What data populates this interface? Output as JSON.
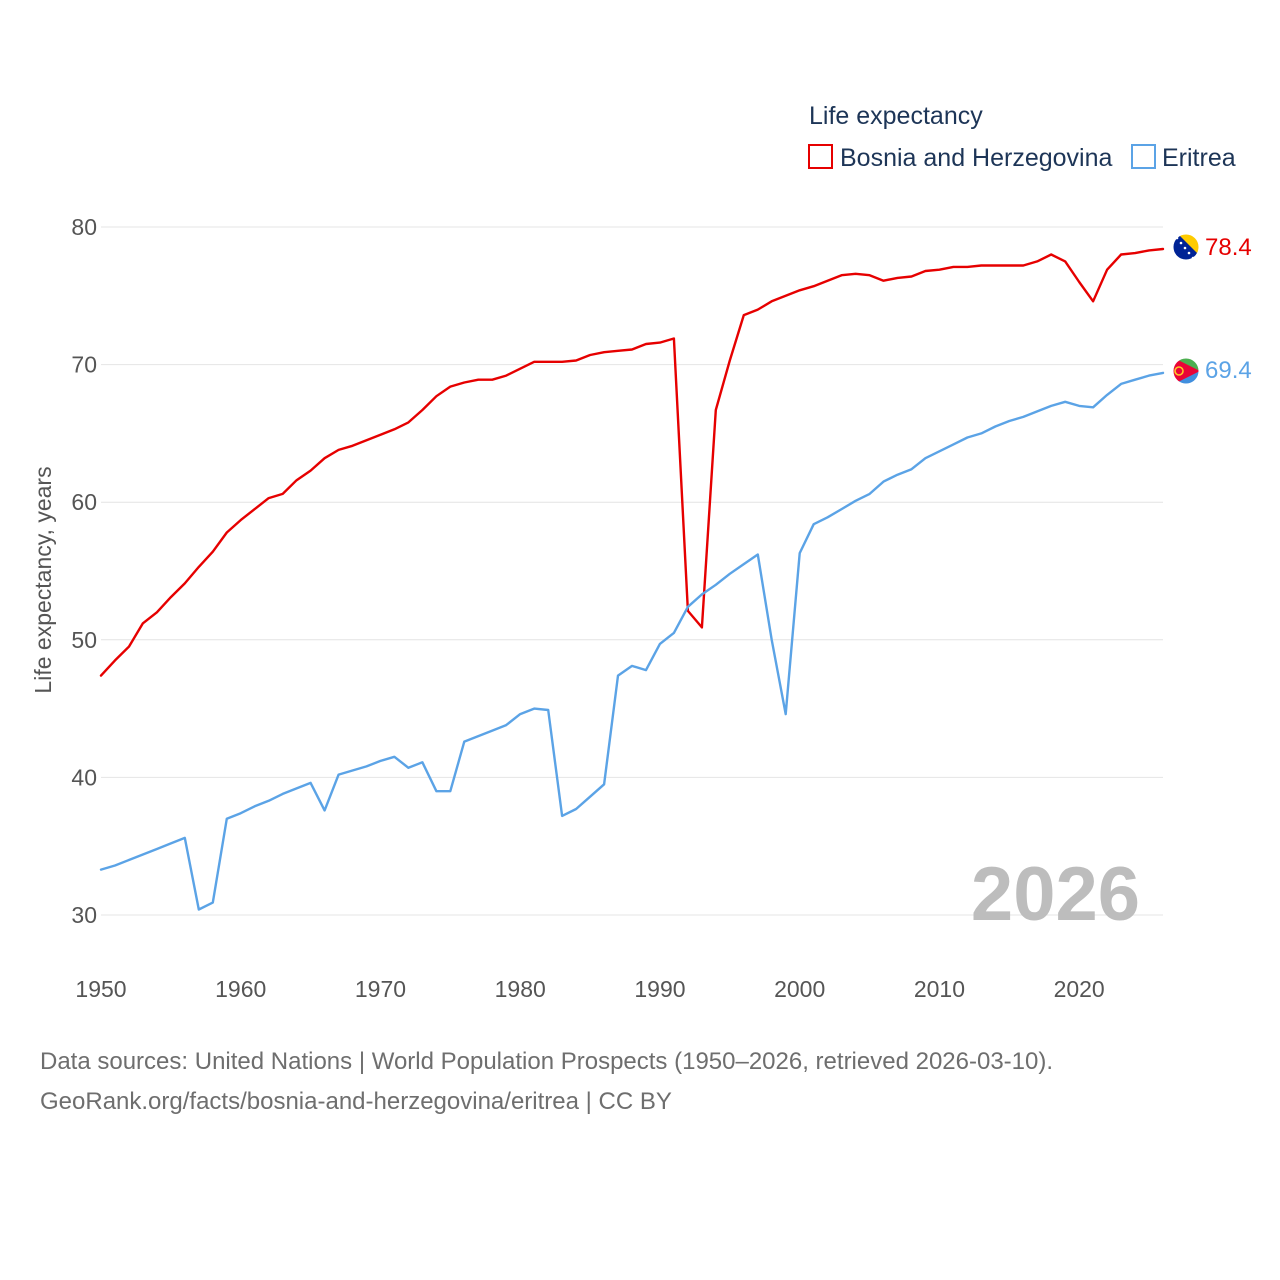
{
  "chart_data": {
    "type": "line",
    "title": "",
    "xlabel": "",
    "ylabel": "Life expectancy, years",
    "xlim": [
      1950,
      2026
    ],
    "ylim": [
      30,
      80
    ],
    "x_ticks": [
      1950,
      1960,
      1970,
      1980,
      1990,
      2000,
      2010,
      2020
    ],
    "y_ticks": [
      30,
      40,
      50,
      60,
      70,
      80
    ],
    "grid": true,
    "legend": {
      "title": "Life expectancy",
      "position": "top-right"
    },
    "year_watermark": "2026",
    "x": [
      1950,
      1951,
      1952,
      1953,
      1954,
      1955,
      1956,
      1957,
      1958,
      1959,
      1960,
      1961,
      1962,
      1963,
      1964,
      1965,
      1966,
      1967,
      1968,
      1969,
      1970,
      1971,
      1972,
      1973,
      1974,
      1975,
      1976,
      1977,
      1978,
      1979,
      1980,
      1981,
      1982,
      1983,
      1984,
      1985,
      1986,
      1987,
      1988,
      1989,
      1990,
      1991,
      1992,
      1993,
      1994,
      1995,
      1996,
      1997,
      1998,
      1999,
      2000,
      2001,
      2002,
      2003,
      2004,
      2005,
      2006,
      2007,
      2008,
      2009,
      2010,
      2011,
      2012,
      2013,
      2014,
      2015,
      2016,
      2017,
      2018,
      2019,
      2020,
      2021,
      2022,
      2023,
      2024,
      2025,
      2026
    ],
    "series": [
      {
        "name": "Bosnia and Herzegovina",
        "color": "#e60000",
        "flag": "bosnia-flag-icon",
        "end_label": "78.4",
        "values": [
          47.4,
          48.5,
          49.5,
          51.2,
          52.0,
          53.1,
          54.1,
          55.3,
          56.4,
          57.8,
          58.7,
          59.5,
          60.3,
          60.6,
          61.6,
          62.3,
          63.2,
          63.8,
          64.1,
          64.5,
          64.9,
          65.3,
          65.8,
          66.7,
          67.7,
          68.4,
          68.7,
          68.9,
          68.9,
          69.2,
          69.7,
          70.2,
          70.2,
          70.2,
          70.3,
          70.7,
          70.9,
          71.0,
          71.1,
          71.5,
          71.6,
          71.9,
          52.1,
          50.9,
          66.7,
          70.3,
          73.6,
          74.0,
          74.6,
          75.0,
          75.4,
          75.7,
          76.1,
          76.5,
          76.6,
          76.5,
          76.1,
          76.3,
          76.4,
          76.8,
          76.9,
          77.1,
          77.1,
          77.2,
          77.2,
          77.2,
          77.2,
          77.5,
          78.0,
          77.5,
          76.0,
          74.6,
          76.9,
          78.0,
          78.1,
          78.3,
          78.4
        ]
      },
      {
        "name": "Eritrea",
        "color": "#5ba3e6",
        "flag": "eritrea-flag-icon",
        "end_label": "69.4",
        "values": [
          33.3,
          33.6,
          34.0,
          34.4,
          34.8,
          35.2,
          35.6,
          30.4,
          30.9,
          37.0,
          37.4,
          37.9,
          38.3,
          38.8,
          39.2,
          39.6,
          37.6,
          40.2,
          40.5,
          40.8,
          41.2,
          41.5,
          40.7,
          41.1,
          39.0,
          39.0,
          42.6,
          43.0,
          43.4,
          43.8,
          44.6,
          45.0,
          44.9,
          37.2,
          37.7,
          38.6,
          39.5,
          47.4,
          48.1,
          47.8,
          49.7,
          50.5,
          52.4,
          53.3,
          54.0,
          54.8,
          55.5,
          56.2,
          50.0,
          44.6,
          56.3,
          58.4,
          58.9,
          59.5,
          60.1,
          60.6,
          61.5,
          62.0,
          62.4,
          63.2,
          63.7,
          64.2,
          64.7,
          65.0,
          65.5,
          65.9,
          66.2,
          66.6,
          67.0,
          67.3,
          67.0,
          66.9,
          67.8,
          68.6,
          68.9,
          69.2,
          69.4
        ]
      }
    ]
  },
  "sources": {
    "line1": "Data sources: United Nations | World Population Prospects (1950–2026, retrieved 2026-03-10).",
    "line2": "GeoRank.org/facts/bosnia-and-herzegovina/eritrea | CC BY"
  }
}
